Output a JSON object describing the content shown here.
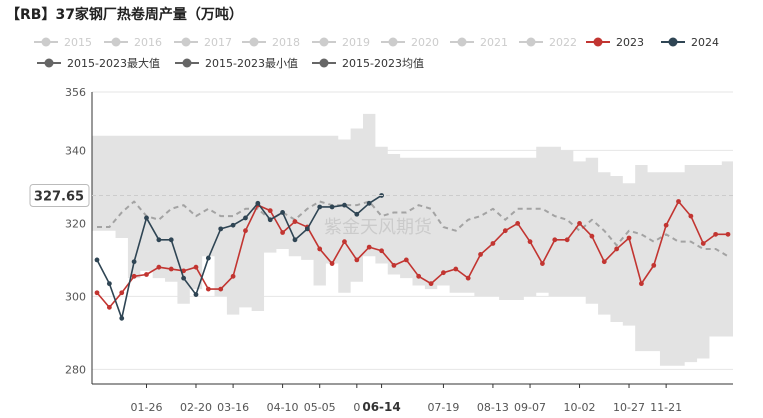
{
  "chart_data": {
    "type": "line",
    "title": "【RB】37家钢厂热卷周产量（万吨）",
    "watermark": "紫金天风期货",
    "xlabel": "",
    "ylabel": "",
    "ylim": [
      276,
      356
    ],
    "yticks": [
      280,
      300,
      320,
      340,
      356
    ],
    "weeks": 52,
    "xtick_labels": [
      {
        "label": "01-26",
        "week": 4
      },
      {
        "label": "02-20",
        "week": 8
      },
      {
        "label": "03-16",
        "week": 11
      },
      {
        "label": "04-10",
        "week": 15
      },
      {
        "label": "05-05",
        "week": 18
      },
      {
        "label": "0",
        "week": 21
      },
      {
        "label": "06-14",
        "week": 23,
        "highlight": true
      },
      {
        "label": "07-19",
        "week": 28
      },
      {
        "label": "08-13",
        "week": 32
      },
      {
        "label": "09-07",
        "week": 35
      },
      {
        "label": "10-02",
        "week": 39
      },
      {
        "label": "10-27",
        "week": 43
      },
      {
        "label": "11-21",
        "week": 46
      }
    ],
    "pointer": {
      "value": "327.65",
      "y": 327.65
    },
    "legend": [
      {
        "name": "2015",
        "color": "#cccccc"
      },
      {
        "name": "2016",
        "color": "#cccccc"
      },
      {
        "name": "2017",
        "color": "#cccccc"
      },
      {
        "name": "2018",
        "color": "#cccccc"
      },
      {
        "name": "2019",
        "color": "#cccccc"
      },
      {
        "name": "2020",
        "color": "#cccccc"
      },
      {
        "name": "2021",
        "color": "#cccccc"
      },
      {
        "name": "2022",
        "color": "#cccccc"
      },
      {
        "name": "2023",
        "color": "#c23531",
        "active": true
      },
      {
        "name": "2024",
        "color": "#2f4554",
        "active": true
      },
      {
        "name": "2015-2023最大值",
        "color": "#666666",
        "active": true
      },
      {
        "name": "2015-2023最小值",
        "color": "#666666",
        "active": true
      },
      {
        "name": "2015-2023均值",
        "color": "#666666",
        "active": true
      }
    ],
    "band": {
      "color": "#e3e3e3",
      "max": [
        344,
        344,
        344,
        344,
        344,
        344,
        344,
        344,
        344,
        344,
        344,
        344,
        344,
        344,
        344,
        344,
        344,
        344,
        344,
        344,
        343,
        346,
        350,
        341,
        339,
        338,
        338,
        338,
        338,
        338,
        338,
        338,
        338,
        338,
        338,
        338,
        341,
        341,
        340,
        337,
        338,
        334,
        333,
        331,
        336,
        334,
        334,
        334,
        336,
        336,
        336,
        337
      ],
      "min": [
        318,
        318,
        316,
        305,
        307,
        305,
        304,
        298,
        302,
        311,
        300,
        295,
        297,
        296,
        312,
        313,
        311,
        310,
        303,
        309,
        301,
        304,
        311,
        309,
        306,
        305,
        303,
        302,
        303,
        301,
        301,
        300,
        300,
        299,
        299,
        300,
        301,
        300,
        300,
        300,
        298,
        295,
        293,
        292,
        285,
        285,
        281,
        281,
        282,
        283,
        289,
        289
      ]
    },
    "series": [
      {
        "name": "2015-2023均值",
        "color": "#a3a3a3",
        "dashed": true,
        "values": [
          319,
          319,
          323,
          326,
          322,
          321,
          324,
          325,
          322,
          324,
          322,
          322,
          324,
          324,
          321,
          323,
          321,
          324,
          326,
          325,
          325,
          325,
          326,
          322,
          323,
          323,
          325,
          324,
          319,
          318,
          321,
          322,
          324,
          321,
          324,
          324,
          324,
          322,
          321,
          318,
          321,
          318,
          314,
          318,
          317,
          315,
          317,
          315,
          315,
          313,
          313,
          311
        ]
      },
      {
        "name": "2023",
        "color": "#c23531",
        "values": [
          301,
          297,
          301,
          305.5,
          306,
          308,
          307.5,
          307,
          308,
          302,
          302,
          305.5,
          318,
          325,
          323.5,
          317.5,
          320.5,
          319,
          313,
          309,
          315,
          310,
          313.5,
          312.5,
          308.5,
          310,
          305.5,
          303.5,
          306.5,
          307.5,
          305,
          311.5,
          314.5,
          318,
          320,
          315,
          309,
          315.5,
          315.5,
          320,
          316.5,
          309.5,
          313,
          316,
          303.5,
          308.5,
          319.5,
          326,
          322,
          314.5,
          317,
          317
        ]
      },
      {
        "name": "2024",
        "color": "#2f4554",
        "values": [
          310,
          303.5,
          294,
          309.5,
          321.5,
          315.5,
          315.5,
          305,
          300.5,
          310.5,
          318.5,
          319.5,
          321.5,
          325.5,
          321,
          323,
          315.5,
          318.5,
          324.5,
          324.5,
          325,
          322.5,
          325.5,
          327.65
        ]
      }
    ]
  }
}
